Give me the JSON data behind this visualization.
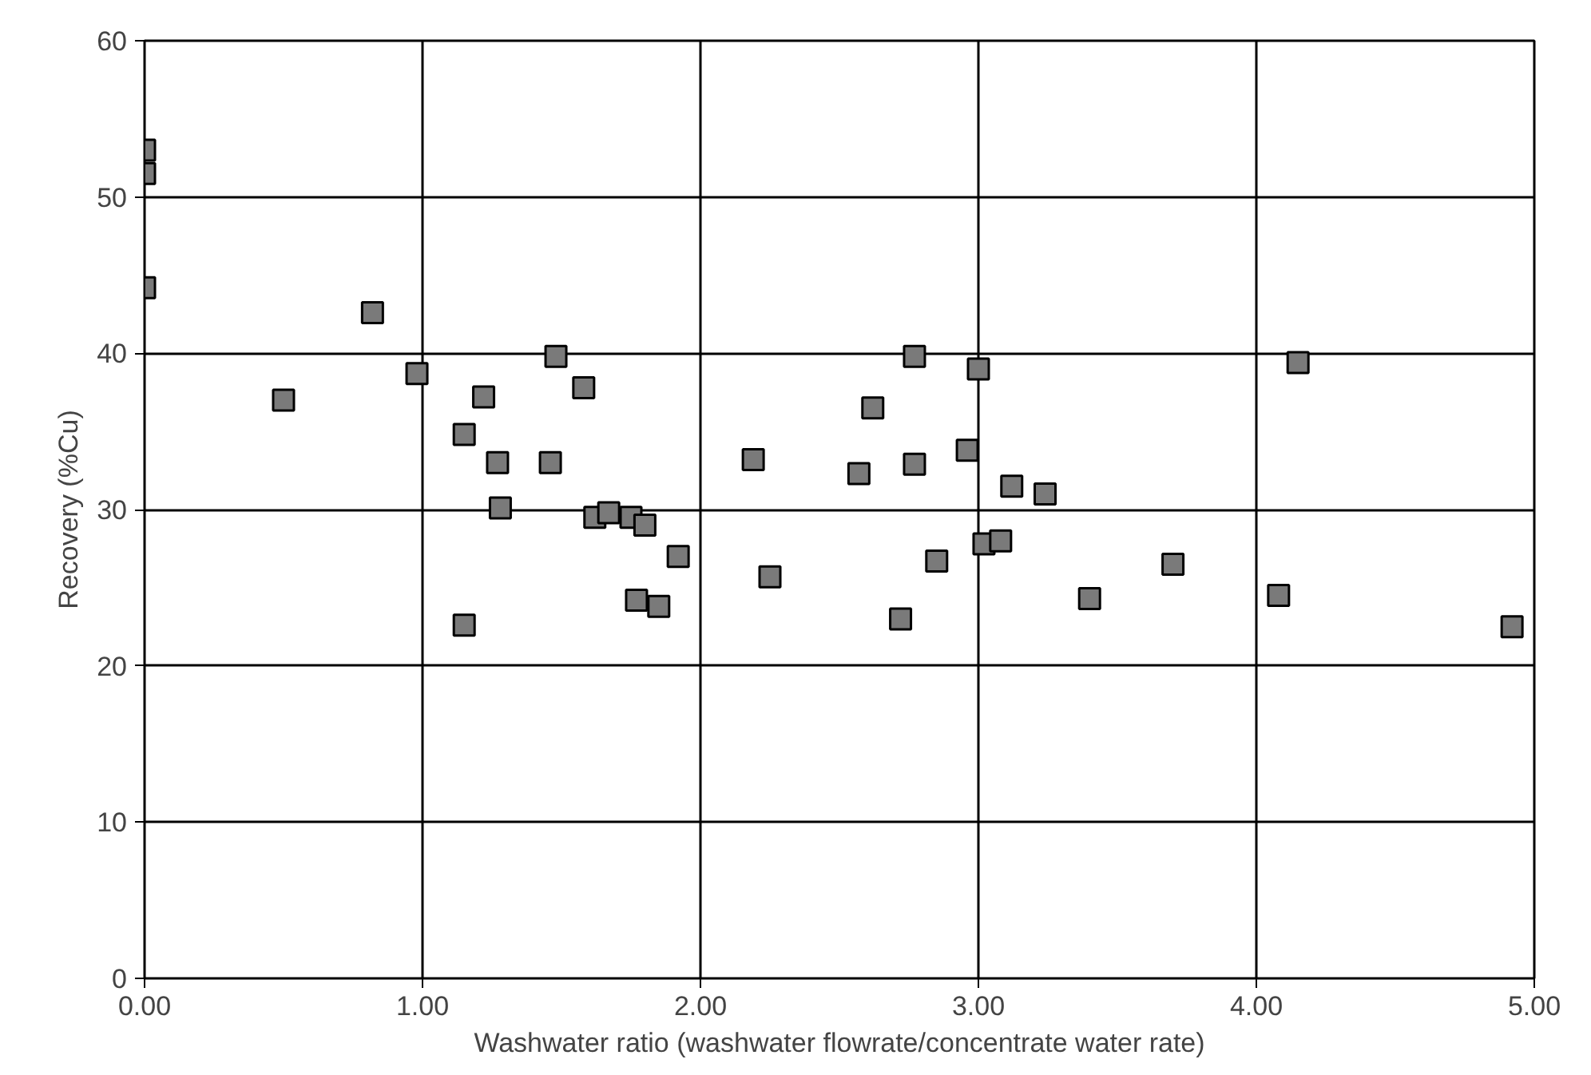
{
  "chart_data": {
    "type": "scatter",
    "xlabel": "Washwater ratio (washwater flowrate/concentrate water rate)",
    "ylabel": "Recovery (%Cu)",
    "x": [
      0,
      0,
      0,
      0.5,
      0.82,
      0.98,
      1.15,
      1.15,
      1.22,
      1.27,
      1.28,
      1.46,
      1.48,
      1.58,
      1.62,
      1.67,
      1.75,
      1.8,
      1.77,
      1.85,
      1.92,
      2.19,
      2.25,
      2.57,
      2.62,
      2.72,
      2.77,
      2.77,
      2.85,
      2.96,
      3.0,
      3.02,
      3.08,
      3.12,
      3.24,
      3.4,
      3.7,
      4.08,
      4.15,
      4.92
    ],
    "series": [
      {
        "color": "#7a7a7a",
        "values": [
          53,
          51.5,
          44.2,
          37,
          42.6,
          38.7,
          34.8,
          22.6,
          37.2,
          33,
          30.1,
          33,
          39.8,
          37.8,
          29.5,
          29.8,
          29.5,
          29,
          24.2,
          23.8,
          27,
          33.2,
          25.7,
          32.3,
          36.5,
          23,
          39.8,
          32.9,
          26.7,
          33.8,
          39,
          27.8,
          28,
          31.5,
          31,
          24.3,
          26.5,
          24.5,
          39.4,
          22.5
        ]
      }
    ],
    "xlim": [
      0,
      5
    ],
    "ylim": [
      0,
      60
    ],
    "xticks": [
      {
        "value": 0,
        "label": "0.00"
      },
      {
        "value": 1,
        "label": "1.00"
      },
      {
        "value": 2,
        "label": "2.00"
      },
      {
        "value": 3,
        "label": "3.00"
      },
      {
        "value": 4,
        "label": "4.00"
      },
      {
        "value": 5,
        "label": "5.00"
      }
    ],
    "yticks": [
      0,
      10,
      20,
      30,
      40,
      50,
      60
    ],
    "grid": true,
    "marker": "square"
  }
}
